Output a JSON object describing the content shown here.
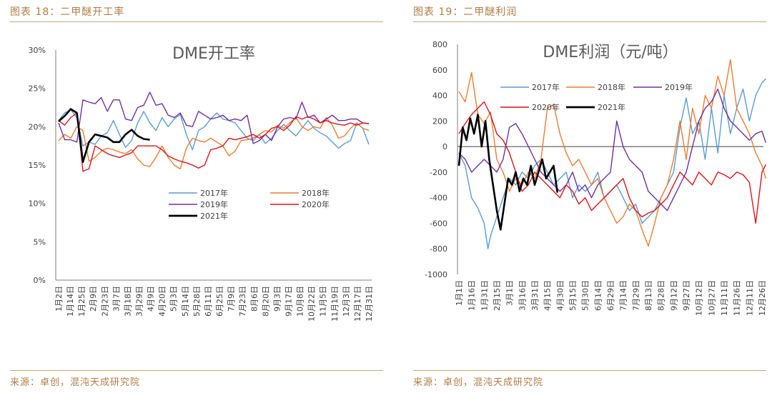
{
  "figures": [
    {
      "title": "图表 18：二甲醚开工率",
      "source": "来源：卓创，混沌天成研究院"
    },
    {
      "title": "图表 19：二甲醚利润",
      "source": "来源：卓创，混沌天成研究院"
    }
  ],
  "colors": {
    "2017年": "#5b9bd5",
    "2018年": "#ed7d31",
    "2019年": "#7030a0",
    "2020年": "#d9151b",
    "2021年": "#000000",
    "accent": "#b07d45"
  },
  "chart_data": [
    {
      "type": "line",
      "title": "DME开工率",
      "ylim": [
        0,
        30
      ],
      "yticks": [
        "0%",
        "5%",
        "10%",
        "15%",
        "20%",
        "25%",
        "30%"
      ],
      "x_ticks": [
        "1月2日",
        "1月14日",
        "1月25日",
        "2月9日",
        "2月23日",
        "3月7日",
        "3月18日",
        "3月29日",
        "4月9日",
        "4月20日",
        "5月3日",
        "5月14日",
        "5月28日",
        "6月11日",
        "6月25日",
        "7月9日",
        "7月23日",
        "8月6日",
        "8月20日",
        "9月3日",
        "9月17日",
        "10月8日",
        "10月22日",
        "11月5日",
        "11月19日",
        "12月3日",
        "12月17日",
        "12月31日"
      ],
      "x_count": 52,
      "legend": "inside-center",
      "series": [
        {
          "name": "2017年",
          "values": [
            20.8,
            21.8,
            22.2,
            21.2,
            17.5,
            18.0,
            17.7,
            18.8,
            19.2,
            20.8,
            19.0,
            17.3,
            18.2,
            20.5,
            22.0,
            20.5,
            19.5,
            21.2,
            20.0,
            21.0,
            21.6,
            19.0,
            17.0,
            19.5,
            20.0,
            21.0,
            21.8,
            21.0,
            20.8,
            20.5,
            19.5,
            18.5,
            18.2,
            19.0,
            17.8,
            18.5,
            19.5,
            20.3,
            19.5,
            18.8,
            19.8,
            20.8,
            19.8,
            19.2,
            18.8,
            18.0,
            17.2,
            17.8,
            18.2,
            20.5,
            19.8,
            17.7
          ]
        },
        {
          "name": "2018年",
          "values": [
            18.2,
            19.0,
            18.5,
            20.0,
            19.5,
            15.5,
            16.0,
            16.8,
            17.2,
            17.0,
            16.7,
            16.5,
            17.0,
            15.8,
            15.0,
            14.8,
            16.0,
            17.5,
            16.0,
            15.0,
            14.5,
            17.2,
            18.5,
            18.2,
            18.0,
            18.5,
            18.0,
            17.5,
            16.2,
            16.8,
            18.2,
            18.3,
            18.5,
            19.0,
            19.5,
            19.3,
            20.2,
            19.8,
            20.5,
            21.2,
            20.0,
            19.5,
            20.0,
            19.8,
            21.2,
            20.2,
            18.5,
            18.8,
            19.8,
            20.5,
            19.8,
            19.5
          ]
        },
        {
          "name": "2019年",
          "values": [
            20.5,
            18.3,
            18.3,
            18.0,
            23.5,
            23.2,
            23.0,
            23.8,
            22.0,
            23.5,
            23.5,
            21.0,
            20.8,
            22.5,
            22.8,
            24.5,
            22.8,
            23.0,
            21.5,
            21.2,
            21.8,
            20.2,
            20.0,
            22.0,
            21.5,
            21.0,
            21.2,
            21.5,
            20.8,
            21.0,
            20.8,
            21.5,
            17.8,
            18.2,
            19.0,
            18.2,
            20.0,
            21.0,
            21.2,
            21.0,
            23.2,
            21.2,
            21.5,
            20.5,
            21.0,
            21.5,
            20.8,
            20.8,
            21.0,
            21.0,
            20.5,
            20.4
          ]
        },
        {
          "name": "2020年",
          "values": [
            20.8,
            20.2,
            21.2,
            21.8,
            14.2,
            14.5,
            17.5,
            17.0,
            16.5,
            16.2,
            16.0,
            16.3,
            16.6,
            17.5,
            17.5,
            17.5,
            17.5,
            17.0,
            16.2,
            15.8,
            15.5,
            15.3,
            15.0,
            14.6,
            15.0,
            17.0,
            17.2,
            17.5,
            18.5,
            18.3,
            18.5,
            18.7,
            19.0,
            18.5,
            19.0,
            19.8,
            20.0,
            19.5,
            20.2,
            21.3,
            21.0,
            21.3,
            21.0,
            20.5,
            20.8,
            20.5,
            20.3,
            20.2,
            20.5,
            20.2,
            20.5,
            20.4
          ]
        },
        {
          "name": "2021年",
          "values": [
            20.7,
            21.4,
            22.3,
            21.8,
            15.4,
            18.0,
            19.0,
            18.8,
            18.6,
            18.0,
            18.0,
            19.0,
            19.6,
            18.8,
            18.4,
            18.3
          ]
        }
      ]
    },
    {
      "type": "line",
      "title": "DME利润（元/吨）",
      "ylim": [
        -1000,
        800
      ],
      "yticks": [
        "-1000",
        "-800",
        "-600",
        "-400",
        "-200",
        "0",
        "200",
        "400",
        "600",
        "800"
      ],
      "x_ticks": [
        "1月1日",
        "1月16日",
        "1月31日",
        "2月15日",
        "3月1日",
        "3月16日",
        "3月31日",
        "4月15日",
        "4月30日",
        "5月15日",
        "5月30日",
        "6月14日",
        "6月29日",
        "7月14日",
        "7月29日",
        "8月13日",
        "8月28日",
        "9月12日",
        "9月27日",
        "10月12日",
        "10月27日",
        "11月11日",
        "11月26日",
        "12月11日",
        "12月26日"
      ],
      "x_count": 25,
      "legend": "top",
      "series": [
        {
          "name": "2017年",
          "x": [
            0,
            0.5,
            1,
            1.5,
            2,
            2.3,
            2.5,
            3,
            3.5,
            4,
            4.5,
            5,
            5.5,
            6,
            6.5,
            7,
            7.5,
            8,
            8.5,
            9,
            9.5,
            10,
            10.5,
            11,
            11.5,
            12,
            12.5,
            13,
            13.5,
            14,
            14.5,
            15,
            15.5,
            16,
            16.5,
            17,
            17.5,
            18,
            18.5,
            19,
            19.5,
            20,
            20.5,
            21,
            21.5,
            22,
            22.5,
            23,
            23.5,
            24,
            24.3
          ],
          "values": [
            -50,
            -150,
            -400,
            -480,
            -600,
            -800,
            -700,
            -550,
            -400,
            -250,
            -300,
            -200,
            -250,
            -150,
            -100,
            -200,
            -300,
            -250,
            -200,
            -400,
            -300,
            -350,
            -300,
            -200,
            -400,
            -350,
            -300,
            -400,
            -500,
            -450,
            -600,
            -550,
            -500,
            -400,
            -300,
            -200,
            150,
            380,
            100,
            200,
            -100,
            300,
            -50,
            400,
            100,
            300,
            450,
            200,
            400,
            500,
            530
          ]
        },
        {
          "name": "2018年",
          "x": [
            0,
            0.5,
            1,
            1.5,
            2,
            2.5,
            3,
            3.5,
            4,
            4.5,
            5,
            5.5,
            6,
            6.5,
            7,
            7.5,
            8,
            8.5,
            9,
            9.5,
            10,
            10.5,
            11,
            11.5,
            12,
            12.5,
            13,
            13.5,
            14,
            14.5,
            15,
            15.5,
            16,
            16.5,
            17,
            17.5,
            18,
            18.5,
            19,
            19.5,
            20,
            20.5,
            21,
            21.5,
            22,
            22.5,
            23,
            23.5,
            24,
            24.3
          ],
          "values": [
            430,
            350,
            580,
            250,
            180,
            270,
            -100,
            -200,
            -350,
            -250,
            -300,
            -200,
            -250,
            -100,
            300,
            330,
            100,
            -50,
            -150,
            -100,
            -200,
            -300,
            -250,
            -400,
            -500,
            -600,
            -550,
            -450,
            -500,
            -650,
            -780,
            -600,
            -400,
            -300,
            -100,
            200,
            -100,
            300,
            100,
            400,
            300,
            550,
            400,
            680,
            300,
            200,
            100,
            -50,
            -150,
            -250
          ]
        },
        {
          "name": "2019年",
          "x": [
            0,
            0.5,
            1,
            1.5,
            2,
            2.5,
            3,
            3.5,
            4,
            4.5,
            5,
            5.5,
            6,
            6.5,
            7,
            7.5,
            8,
            8.5,
            9,
            9.5,
            10,
            10.5,
            11,
            11.5,
            12,
            12.5,
            13,
            13.5,
            14,
            14.5,
            15,
            15.5,
            16,
            16.5,
            17,
            17.5,
            18,
            18.5,
            19,
            19.5,
            20,
            20.5,
            21,
            21.5,
            22,
            22.5,
            23,
            23.5,
            24,
            24.3
          ],
          "values": [
            -50,
            -100,
            -200,
            -150,
            -100,
            -150,
            -200,
            -100,
            150,
            180,
            100,
            0,
            -100,
            -200,
            -250,
            -300,
            -350,
            -300,
            -200,
            -350,
            -300,
            -400,
            -300,
            -250,
            -200,
            200,
            0,
            -100,
            -150,
            -200,
            -350,
            -400,
            -450,
            -500,
            -400,
            -300,
            -200,
            0,
            200,
            300,
            350,
            450,
            300,
            200,
            150,
            100,
            50,
            100,
            120,
            30
          ]
        },
        {
          "name": "2020年",
          "x": [
            0,
            0.5,
            1,
            1.5,
            2,
            2.5,
            3,
            3.5,
            4,
            4.5,
            5,
            5.5,
            6,
            6.5,
            7,
            7.5,
            8,
            8.5,
            9,
            9.5,
            10,
            10.5,
            11,
            11.5,
            12,
            12.5,
            13,
            13.5,
            14,
            14.5,
            15,
            15.5,
            16,
            16.5,
            17,
            17.5,
            18,
            18.5,
            19,
            19.5,
            20,
            20.5,
            21,
            21.5,
            22,
            22.5,
            23,
            23.5,
            24,
            24.3
          ],
          "values": [
            100,
            180,
            250,
            300,
            350,
            250,
            100,
            50,
            -50,
            -200,
            -350,
            -300,
            -200,
            -250,
            -300,
            -350,
            -400,
            -300,
            -350,
            -450,
            -400,
            -500,
            -450,
            -400,
            -350,
            -300,
            -250,
            -400,
            -500,
            -550,
            -520,
            -500,
            -450,
            -400,
            -300,
            -200,
            -250,
            -300,
            -200,
            -250,
            -300,
            -200,
            -220,
            -250,
            -200,
            -220,
            -280,
            -600,
            -200,
            -140
          ]
        },
        {
          "name": "2021年",
          "x": [
            0,
            0.3,
            0.6,
            0.9,
            1.2,
            1.5,
            1.8,
            2.1,
            2.4,
            2.7,
            3,
            3.3,
            3.6,
            3.9,
            4.2,
            4.5,
            4.8,
            5.1,
            5.4,
            5.7,
            6,
            6.3,
            6.6,
            6.9,
            7.2,
            7.5,
            7.8
          ],
          "values": [
            -150,
            150,
            50,
            220,
            100,
            250,
            0,
            200,
            -100,
            -300,
            -500,
            -650,
            -450,
            -250,
            -300,
            -200,
            -350,
            -250,
            -300,
            -150,
            -300,
            -200,
            -100,
            -250,
            -200,
            -150,
            -360
          ]
        }
      ]
    }
  ]
}
